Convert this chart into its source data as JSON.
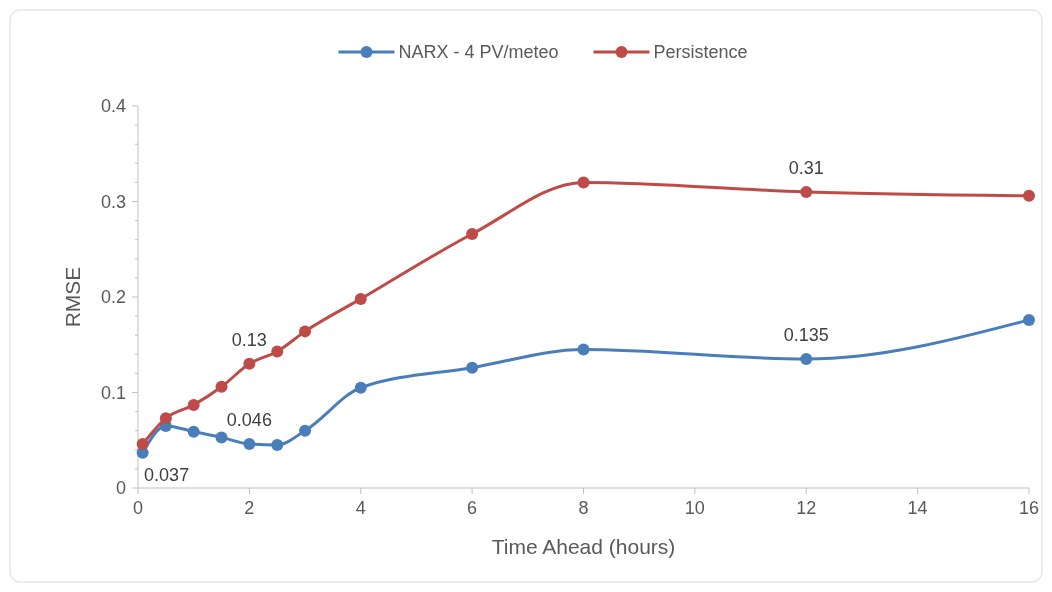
{
  "chart_data": {
    "type": "line",
    "xlabel": "Time Ahead (hours)",
    "ylabel": "RMSE",
    "xlim": [
      0,
      16
    ],
    "xticks": [
      0,
      2,
      4,
      6,
      8,
      10,
      12,
      14,
      16
    ],
    "ylim": [
      0,
      0.4
    ],
    "yticks": [
      0,
      0.1,
      0.2,
      0.3,
      0.4
    ],
    "grid": false,
    "legend": "top",
    "marker": "circle",
    "line_style": "solid",
    "series": [
      {
        "name": "NARX - 4 PV/meteo",
        "color": "#4a7ebb",
        "x": [
          0.083,
          0.5,
          1,
          1.5,
          2,
          2.5,
          3,
          4,
          6,
          8,
          12,
          16
        ],
        "values": [
          0.037,
          0.065,
          0.059,
          0.053,
          0.046,
          0.045,
          0.06,
          0.105,
          0.126,
          0.145,
          0.135,
          0.176
        ],
        "value_labels": [
          "0.037",
          null,
          null,
          null,
          "0.046",
          null,
          null,
          null,
          null,
          null,
          "0.135",
          null
        ]
      },
      {
        "name": "Persistence",
        "color": "#be4b48",
        "x": [
          0.083,
          0.5,
          1,
          1.5,
          2,
          2.5,
          3,
          4,
          6,
          8,
          12,
          16
        ],
        "values": [
          0.046,
          0.073,
          0.087,
          0.106,
          0.13,
          0.143,
          0.164,
          0.198,
          0.266,
          0.32,
          0.31,
          0.306
        ],
        "value_labels": [
          null,
          null,
          null,
          null,
          "0.13",
          null,
          null,
          null,
          null,
          null,
          "0.31",
          null
        ]
      }
    ]
  }
}
